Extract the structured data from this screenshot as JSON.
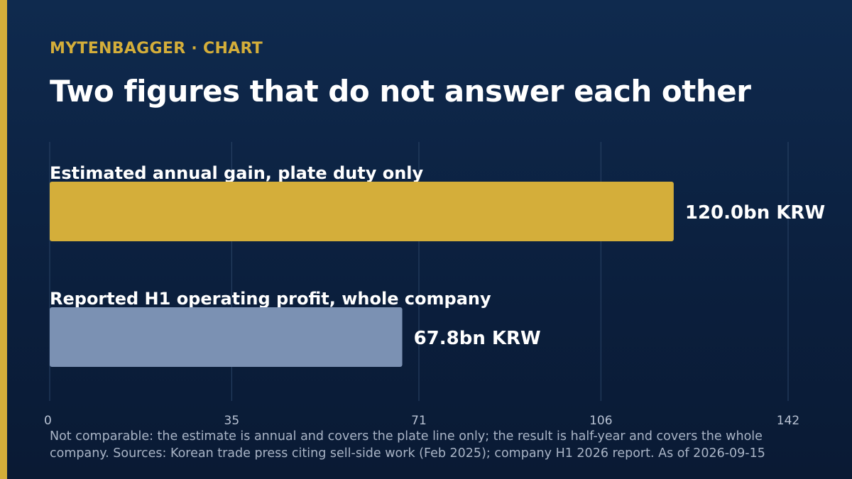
{
  "header": {
    "kicker": "MYTENBAGGER · CHART",
    "title": "Two figures that do not answer each other"
  },
  "chart_data": {
    "type": "bar",
    "orientation": "horizontal",
    "title": "Two figures that do not answer each other",
    "xlabel": "",
    "ylabel": "",
    "xlim": [
      0,
      142
    ],
    "x_ticks": [
      "0",
      "35",
      "71",
      "106",
      "142"
    ],
    "grid": true,
    "categories": [
      "Estimated annual gain, plate duty only",
      "Reported H1 operating profit, whole company"
    ],
    "values": [
      120.0,
      67.8
    ],
    "value_labels": [
      "120.0bn KRW",
      "67.8bn KRW"
    ],
    "unit": "bn KRW",
    "colors": [
      "#d4ae3a",
      "#7b91b3"
    ]
  },
  "colors": {
    "accent": "#d4ae3a",
    "secondary_bar": "#7b91b3",
    "background": "#0b1f3d",
    "gridline": "#2a4466",
    "tick_text": "#b8c2d3"
  },
  "footnote": "Not comparable: the estimate is annual and covers the plate line only; the result is half-year and covers the whole company. Sources: Korean trade press citing sell-side work (Feb 2025); company H1 2026 report. As of 2026-09-15"
}
